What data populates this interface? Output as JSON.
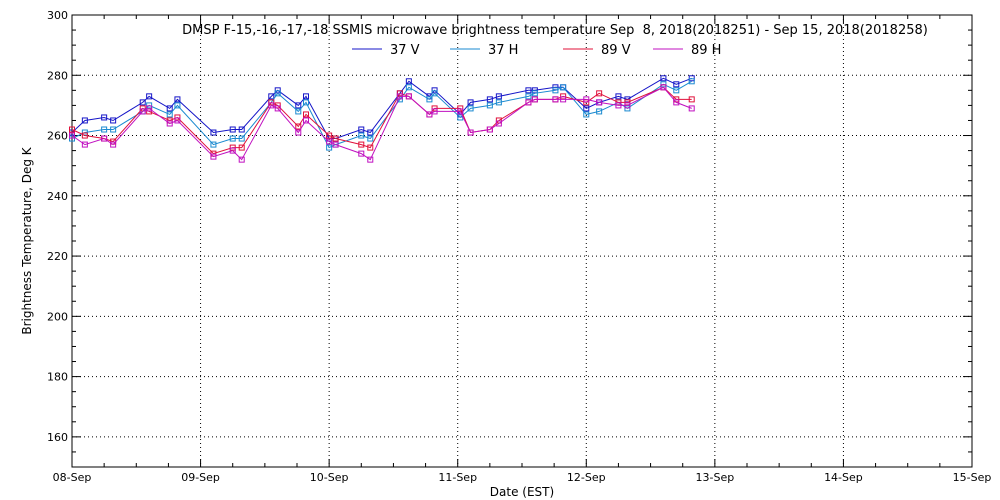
{
  "chart_data": {
    "type": "line",
    "title": "DMSP F-15,-16,-17,-18 SSMIS microwave brightness temperature Sep  8, 2018(2018251) - Sep 15, 2018(2018258)",
    "xlabel": "Date (EST)",
    "ylabel": "Brightness Temperature, Deg K",
    "xlim": [
      "2018-09-08",
      "2018-09-15"
    ],
    "ylim": [
      150,
      300
    ],
    "x_ticks": [
      "08-Sep",
      "09-Sep",
      "10-Sep",
      "11-Sep",
      "12-Sep",
      "13-Sep",
      "14-Sep",
      "15-Sep"
    ],
    "y_ticks": [
      160,
      180,
      200,
      220,
      240,
      260,
      280,
      300
    ],
    "grid": true,
    "legend_position": "top-center",
    "x_unit_note": "x values are fractional days after 2018-09-08 00:00 EST",
    "x": [
      0.0,
      0.1,
      0.25,
      0.32,
      0.55,
      0.6,
      0.76,
      0.82,
      1.1,
      1.25,
      1.32,
      1.55,
      1.6,
      1.76,
      1.82,
      2.0,
      2.05,
      2.25,
      2.32,
      2.55,
      2.62,
      2.78,
      2.82,
      3.02,
      3.1,
      3.25,
      3.32,
      3.55,
      3.6,
      3.76,
      3.82,
      4.0,
      4.1,
      4.25,
      4.32,
      4.6,
      4.7,
      4.82
    ],
    "series": [
      {
        "name": "37 V",
        "color": "#1515c8",
        "values": [
          261,
          265,
          266,
          265,
          271,
          273,
          269,
          272,
          261,
          262,
          262,
          273,
          275,
          270,
          273,
          259,
          259,
          262,
          261,
          274,
          278,
          273,
          275,
          267,
          271,
          272,
          273,
          275,
          275,
          276,
          276,
          269,
          271,
          273,
          272,
          279,
          277,
          279
        ]
      },
      {
        "name": "37 H",
        "color": "#1a8ad0",
        "values": [
          259,
          261,
          262,
          262,
          268,
          270,
          267,
          270,
          257,
          259,
          259,
          271,
          274,
          268,
          271,
          256,
          257,
          260,
          259,
          272,
          276,
          272,
          274,
          266,
          269,
          270,
          271,
          273,
          274,
          275,
          276,
          267,
          268,
          271,
          269,
          277,
          275,
          278
        ]
      },
      {
        "name": "89 V",
        "color": "#e0103a",
        "values": [
          262,
          260,
          259,
          258,
          269,
          268,
          265,
          266,
          254,
          256,
          256,
          271,
          270,
          263,
          267,
          260,
          259,
          257,
          256,
          274,
          273,
          267,
          269,
          269,
          261,
          262,
          265,
          271,
          272,
          272,
          273,
          271,
          274,
          271,
          271,
          276,
          272,
          272
        ]
      },
      {
        "name": "89 H",
        "color": "#c010c0",
        "values": [
          260,
          257,
          259,
          257,
          268,
          269,
          264,
          265,
          253,
          255,
          252,
          270,
          269,
          261,
          265,
          258,
          257,
          254,
          252,
          273,
          273,
          267,
          268,
          268,
          261,
          262,
          264,
          271,
          272,
          272,
          272,
          272,
          271,
          270,
          270,
          276,
          271,
          269
        ]
      }
    ]
  }
}
